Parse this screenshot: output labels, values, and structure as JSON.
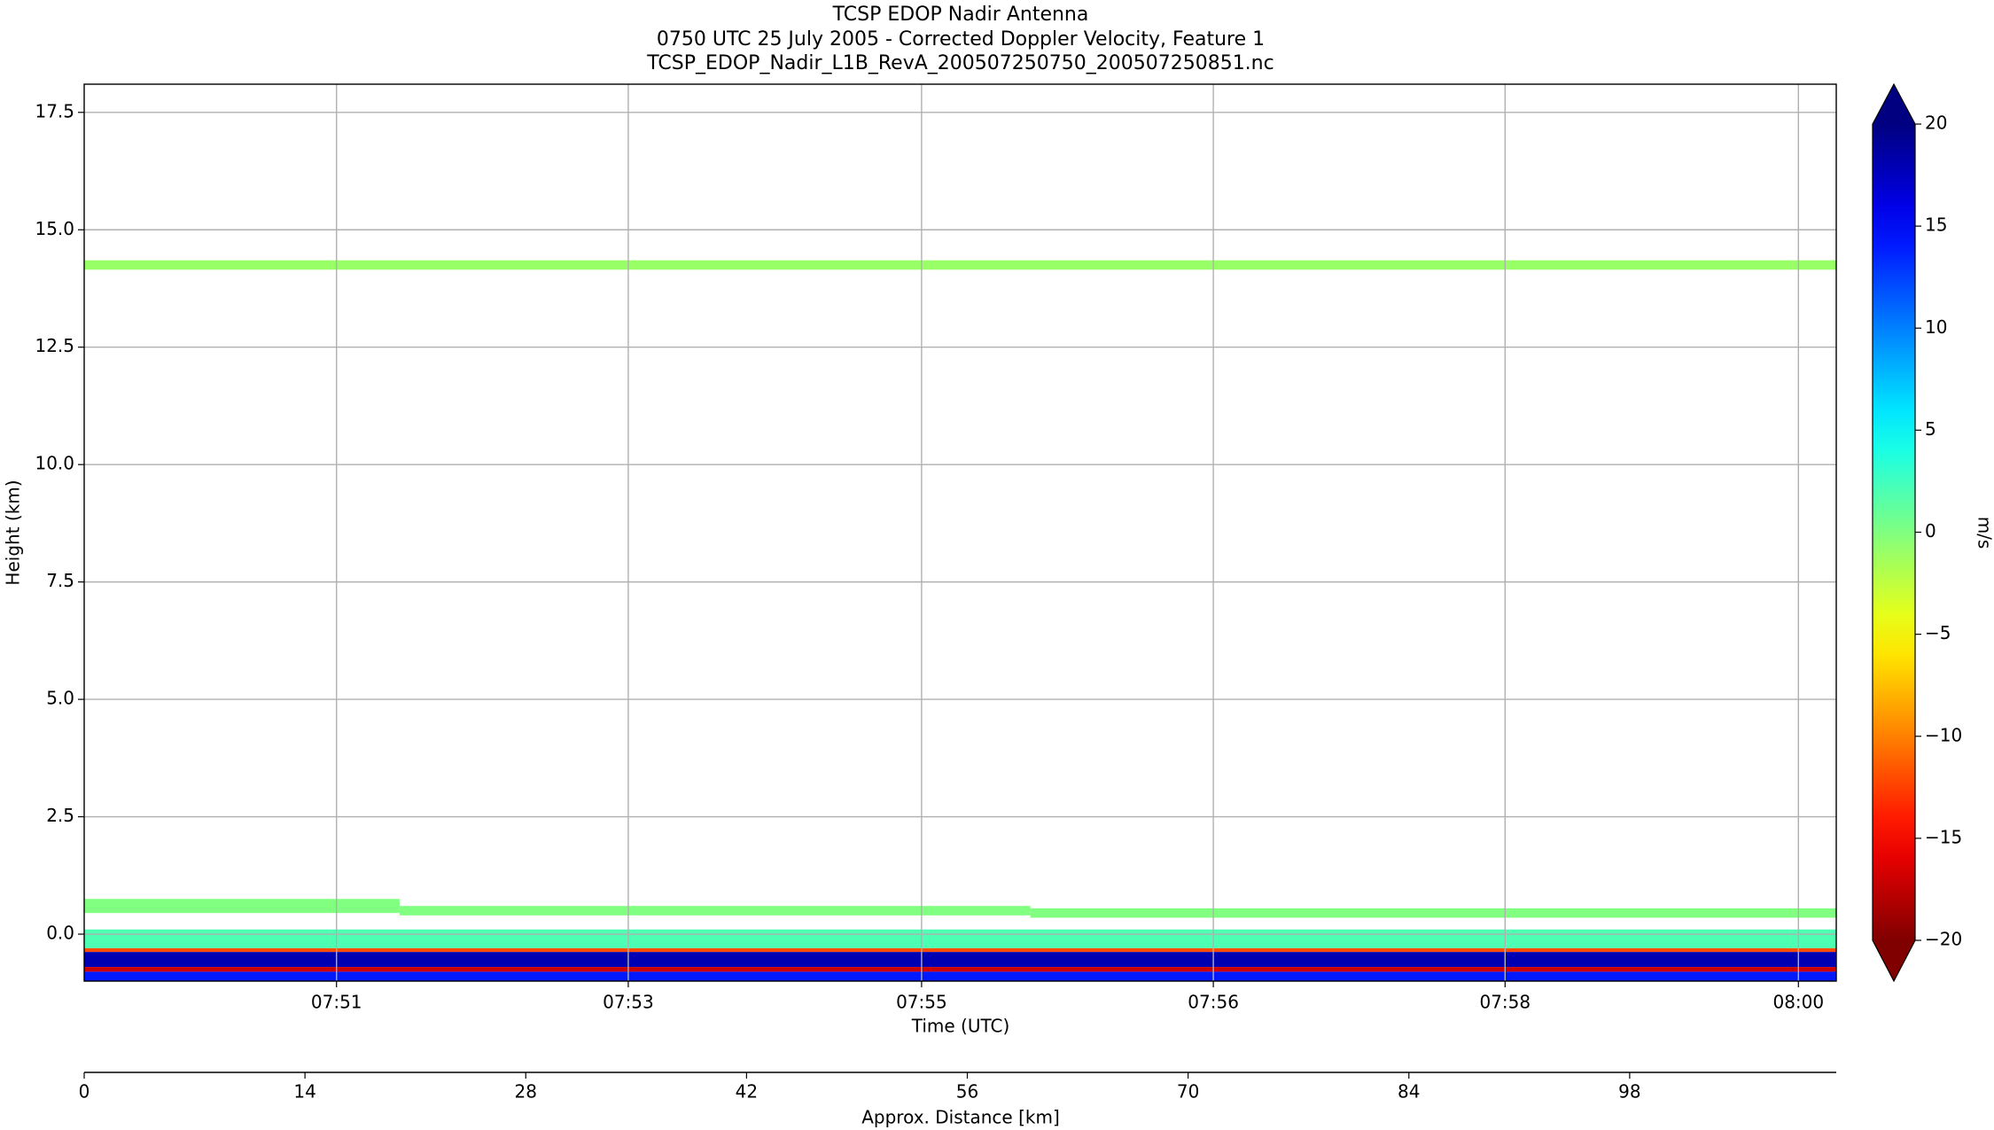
{
  "chart_data": {
    "type": "curtain",
    "title": "TCSP EDOP Nadir Antenna",
    "subtitle": "0750 UTC 25 July 2005 - Corrected Doppler Velocity, Feature 1",
    "filename": "TCSP_EDOP_Nadir_L1B_RevA_200507250750_200507250851.nc",
    "ylabel": "Height (km)",
    "xlabel": "Time (UTC)",
    "x2label": "Approx. Distance [km]",
    "ylim": [
      -1,
      18.1
    ],
    "xlim": [
      0,
      111.1
    ],
    "yticks": [
      {
        "value": 0,
        "label": "0.0"
      },
      2.5,
      {
        "value": 5,
        "label": "5.0"
      },
      7.5,
      {
        "value": 10,
        "label": "10.0"
      },
      12.5,
      {
        "value": 15,
        "label": "15.0"
      },
      17.5
    ],
    "xticks": [
      {
        "value": 16.0,
        "label": "07:51"
      },
      {
        "value": 34.5,
        "label": "07:53"
      },
      {
        "value": 53.1,
        "label": "07:55"
      },
      {
        "value": 71.6,
        "label": "07:56"
      },
      {
        "value": 90.1,
        "label": "07:58"
      },
      {
        "value": 108.7,
        "label": "08:00"
      }
    ],
    "x2ticks": [
      0,
      14,
      28,
      42,
      56,
      70,
      84,
      98
    ],
    "grid": true,
    "colormap": "jet",
    "clim": [
      -20,
      20
    ],
    "colorbar_label": "m/s",
    "colorbar_ticks": [
      {
        "value": -20,
        "label": "−20"
      },
      {
        "value": -15,
        "label": "−15"
      },
      {
        "value": -10,
        "label": "−10"
      },
      {
        "value": -5,
        "label": "−5"
      },
      0,
      5,
      10,
      15,
      20
    ],
    "layers": [
      {
        "x0": 0,
        "x1": 111.1,
        "bottom": 14.15,
        "top": 14.35,
        "value": -1
      },
      {
        "x0": 0,
        "x1": 20,
        "bottom": 0.45,
        "top": 0.75,
        "value": 0
      },
      {
        "x0": 20,
        "x1": 60,
        "bottom": 0.4,
        "top": 0.6,
        "value": 0
      },
      {
        "x0": 60,
        "x1": 111.1,
        "bottom": 0.35,
        "top": 0.55,
        "value": 0
      },
      {
        "x0": 0,
        "x1": 111.1,
        "bottom": -0.3,
        "top": 0.1,
        "value": 2
      },
      {
        "x0": 0,
        "x1": 111.1,
        "bottom": -0.38,
        "top": -0.3,
        "value": -12
      },
      {
        "x0": 0,
        "x1": 111.1,
        "bottom": -0.7,
        "top": -0.38,
        "value": 18
      },
      {
        "x0": 0,
        "x1": 111.1,
        "bottom": -0.8,
        "top": -0.7,
        "value": -17
      },
      {
        "x0": 0,
        "x1": 111.1,
        "bottom": -1,
        "top": -0.8,
        "value": 14
      }
    ]
  }
}
